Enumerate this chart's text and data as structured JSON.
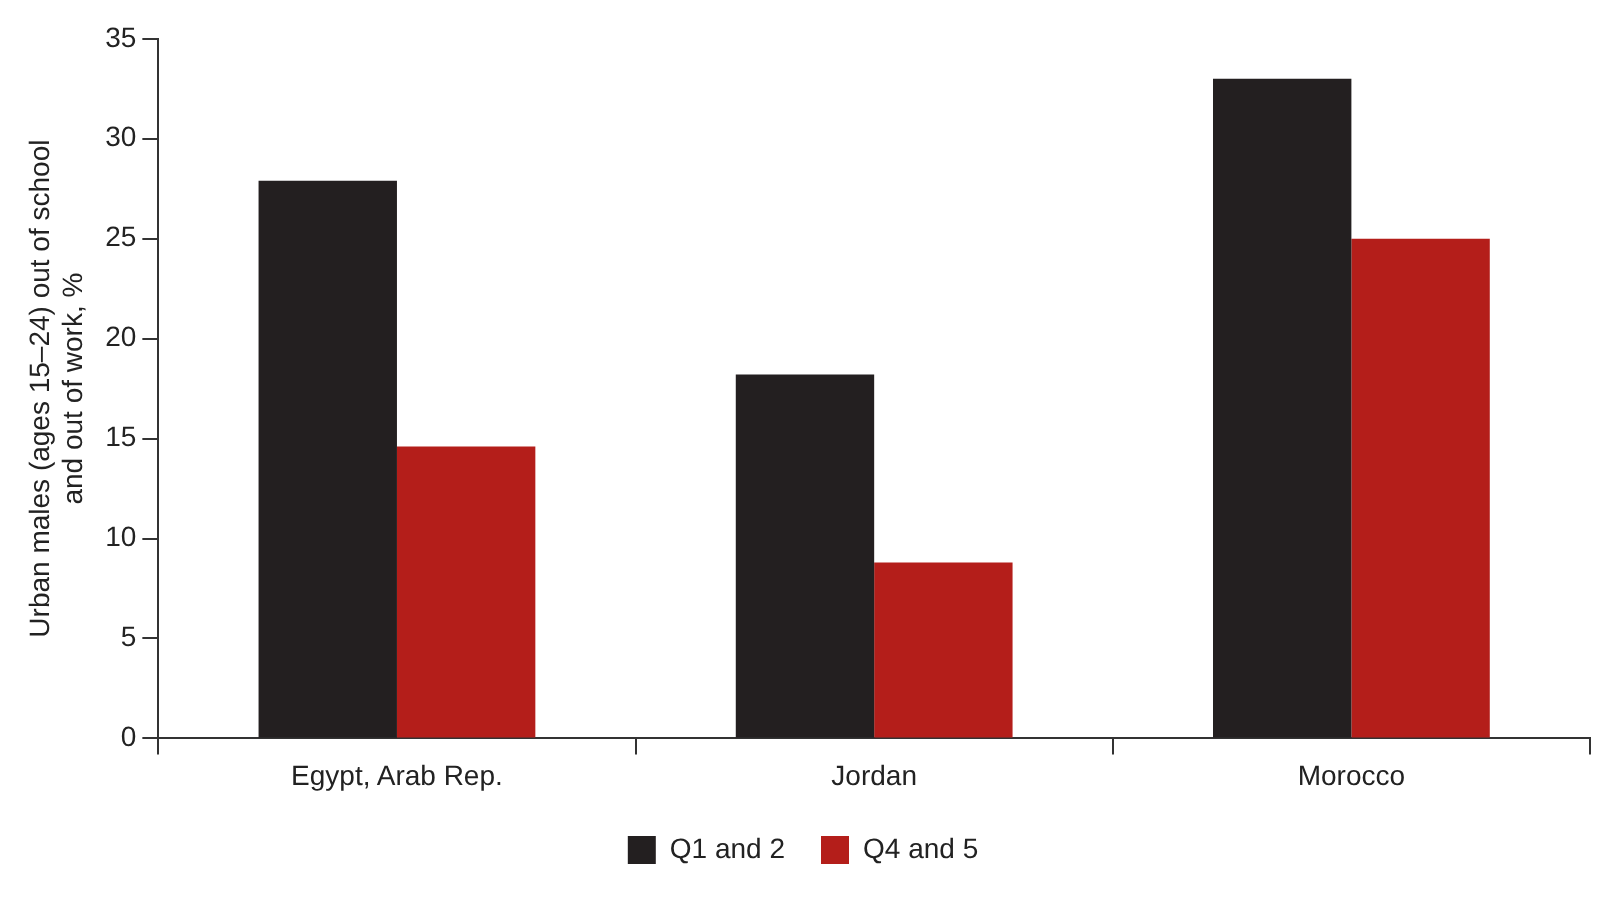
{
  "chart_data": {
    "type": "bar",
    "ylabel": "Urban males (ages 15–24) out of school\nand out of work, %",
    "categories": [
      "Egypt, Arab Rep.",
      "Jordan",
      "Morocco"
    ],
    "series": [
      {
        "name": "Q1 and 2",
        "color": "#231f20",
        "values": [
          27.9,
          18.2,
          33
        ]
      },
      {
        "name": "Q4 and 5",
        "color": "#b41e1a",
        "values": [
          14.6,
          8.8,
          25
        ]
      }
    ],
    "ylim": [
      0,
      35
    ],
    "yticks": [
      0,
      5,
      10,
      15,
      20,
      25,
      30,
      35
    ],
    "grid": false,
    "legend": "bottom"
  }
}
